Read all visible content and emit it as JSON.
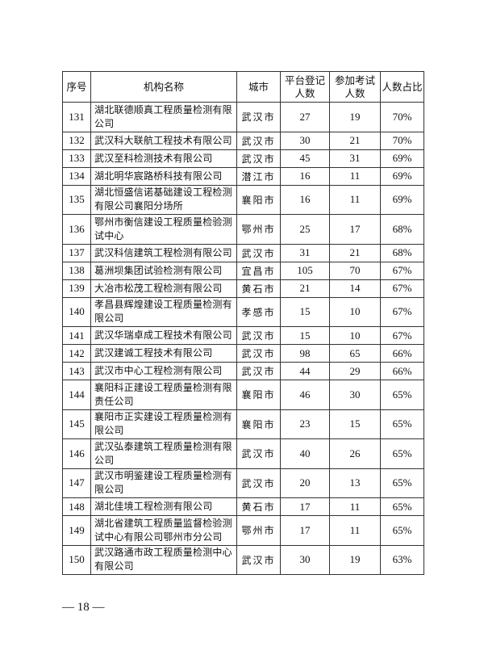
{
  "table": {
    "headers": [
      "序号",
      "机构名称",
      "城市",
      "平台登记人数",
      "参加考试人数",
      "人数占比"
    ],
    "header_lines": [
      [
        "序号"
      ],
      [
        "机构名称"
      ],
      [
        "城市"
      ],
      [
        "平台登记",
        "人数"
      ],
      [
        "参加考试",
        "人数"
      ],
      [
        "人数占比"
      ]
    ],
    "rows": [
      {
        "no": "131",
        "name": "湖北联德顺真工程质量检测有限公司",
        "city": "武汉市",
        "registered": "27",
        "examined": "19",
        "ratio": "70%",
        "lines": 2
      },
      {
        "no": "132",
        "name": "武汉科大联航工程技术有限公司",
        "city": "武汉市",
        "registered": "30",
        "examined": "21",
        "ratio": "70%",
        "lines": 1
      },
      {
        "no": "133",
        "name": "武汉至科检测技术有限公司",
        "city": "武汉市",
        "registered": "45",
        "examined": "31",
        "ratio": "69%",
        "lines": 1
      },
      {
        "no": "134",
        "name": "湖北明华宸路桥科技有限公司",
        "city": "潜江市",
        "registered": "16",
        "examined": "11",
        "ratio": "69%",
        "lines": 1
      },
      {
        "no": "135",
        "name": "湖北恒盛信诺基础建设工程检测有限公司襄阳分场所",
        "city": "襄阳市",
        "registered": "16",
        "examined": "11",
        "ratio": "69%",
        "lines": 2
      },
      {
        "no": "136",
        "name": "鄂州市衡信建设工程质量检验测试中心",
        "city": "鄂州市",
        "registered": "25",
        "examined": "17",
        "ratio": "68%",
        "lines": 2
      },
      {
        "no": "137",
        "name": "武汉科信建筑工程检测有限公司",
        "city": "武汉市",
        "registered": "31",
        "examined": "21",
        "ratio": "68%",
        "lines": 1
      },
      {
        "no": "138",
        "name": "葛洲坝集团试验检测有限公司",
        "city": "宜昌市",
        "registered": "105",
        "examined": "70",
        "ratio": "67%",
        "lines": 1
      },
      {
        "no": "139",
        "name": "大冶市松茂工程检测有限公司",
        "city": "黄石市",
        "registered": "21",
        "examined": "14",
        "ratio": "67%",
        "lines": 1
      },
      {
        "no": "140",
        "name": "孝昌县辉煌建设工程质量检测有限公司",
        "city": "孝感市",
        "registered": "15",
        "examined": "10",
        "ratio": "67%",
        "lines": 2
      },
      {
        "no": "141",
        "name": "武汉华瑞卓成工程技术有限公司",
        "city": "武汉市",
        "registered": "15",
        "examined": "10",
        "ratio": "67%",
        "lines": 1
      },
      {
        "no": "142",
        "name": "武汉建诚工程技术有限公司",
        "city": "武汉市",
        "registered": "98",
        "examined": "65",
        "ratio": "66%",
        "lines": 1
      },
      {
        "no": "143",
        "name": "武汉市中心工程检测有限公司",
        "city": "武汉市",
        "registered": "44",
        "examined": "29",
        "ratio": "66%",
        "lines": 1
      },
      {
        "no": "144",
        "name": "襄阳科正建设工程质量检测有限责任公司",
        "city": "襄阳市",
        "registered": "46",
        "examined": "30",
        "ratio": "65%",
        "lines": 2
      },
      {
        "no": "145",
        "name": "襄阳市正实建设工程质量检测有限公司",
        "city": "襄阳市",
        "registered": "23",
        "examined": "15",
        "ratio": "65%",
        "lines": 2
      },
      {
        "no": "146",
        "name": "武汉弘泰建筑工程质量检测有限公司",
        "city": "武汉市",
        "registered": "40",
        "examined": "26",
        "ratio": "65%",
        "lines": 2
      },
      {
        "no": "147",
        "name": "武汉市明鉴建设工程质量检测有限公司",
        "city": "武汉市",
        "registered": "20",
        "examined": "13",
        "ratio": "65%",
        "lines": 2
      },
      {
        "no": "148",
        "name": "湖北佳境工程检测有限公司",
        "city": "黄石市",
        "registered": "17",
        "examined": "11",
        "ratio": "65%",
        "lines": 1
      },
      {
        "no": "149",
        "name": "湖北省建筑工程质量监督检验测试中心有限公司鄂州市分公司",
        "city": "鄂州市",
        "registered": "17",
        "examined": "11",
        "ratio": "65%",
        "lines": 2
      },
      {
        "no": "150",
        "name": "武汉路通市政工程质量检测中心有限公司",
        "city": "武汉市",
        "registered": "30",
        "examined": "19",
        "ratio": "63%",
        "lines": 2
      }
    ]
  },
  "footer": {
    "page_number": "— 18 —"
  }
}
